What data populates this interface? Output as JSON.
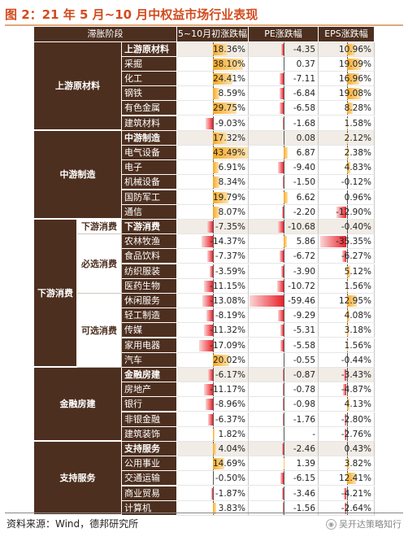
{
  "title": "图 2：21 年 5 月~10 月中权益市场行业表现",
  "headers": [
    "滞胀阶段",
    "5~10月初涨跌幅",
    "PE涨跌幅",
    "EPS涨跌幅"
  ],
  "footer": "资料来源：Wind，德邦研究所",
  "watermark": "吴开达策略知行",
  "groups": [
    {
      "label": "上游原材料",
      "rows": [
        {
          "name": "上游原材料",
          "summary": true,
          "v1": "18.36%",
          "v2": "-4.35",
          "v3": "10.96%"
        },
        {
          "name": "采掘",
          "v1": "38.10%",
          "v2": "0.37",
          "v3": "19.09%"
        },
        {
          "name": "化工",
          "v1": "24.41%",
          "v2": "-7.11",
          "v3": "16.96%"
        },
        {
          "name": "钢铁",
          "v1": "8.59%",
          "v2": "-6.84",
          "v3": "19.08%"
        },
        {
          "name": "有色金属",
          "v1": "29.75%",
          "v2": "-6.58",
          "v3": "8.28%"
        },
        {
          "name": "建筑材料",
          "v1": "-9.03%",
          "v2": "-1.68",
          "v3": "1.58%"
        }
      ]
    },
    {
      "label": "中游制造",
      "rows": [
        {
          "name": "中游制造",
          "summary": true,
          "v1": "17.32%",
          "v2": "0.08",
          "v3": "2.12%"
        },
        {
          "name": "电气设备",
          "v1": "43.49%",
          "v2": "6.87",
          "v3": "2.38%"
        },
        {
          "name": "电子",
          "v1": "6.91%",
          "v2": "-9.40",
          "v3": "4.83%"
        },
        {
          "name": "机械设备",
          "v1": "8.34%",
          "v2": "-1.50",
          "v3": "-0.12%"
        },
        {
          "name": "国防军工",
          "v1": "19.79%",
          "v2": "6.62",
          "v3": "0.96%"
        },
        {
          "name": "通信",
          "v1": "8.07%",
          "v2": "-2.20",
          "v3": "-12.90%"
        }
      ]
    },
    {
      "label": "下游消费",
      "subgroups": [
        {
          "label": "下游消费",
          "rows": [
            {
              "name": "下游消费",
              "summary": true,
              "v1": "-7.35%",
              "v2": "-10.68",
              "v3": "-0.40%"
            }
          ]
        },
        {
          "label": "必选消费",
          "rows": [
            {
              "name": "农林牧渔",
              "v1": "-14.37%",
              "v2": "5.86",
              "v3": "-35.35%"
            },
            {
              "name": "食品饮料",
              "v1": "-7.37%",
              "v2": "-6.72",
              "v3": "-6.27%"
            },
            {
              "name": "纺织服装",
              "v1": "-3.59%",
              "v2": "-3.90",
              "v3": "5.12%"
            },
            {
              "name": "医药生物",
              "v1": "-11.15%",
              "v2": "-10.72",
              "v3": "1.56%"
            }
          ]
        },
        {
          "label": "可选消费",
          "rows": [
            {
              "name": "休闲服务",
              "v1": "-13.08%",
              "v2": "-59.46",
              "v3": "12.95%"
            },
            {
              "name": "轻工制造",
              "v1": "-8.19%",
              "v2": "-9.29",
              "v3": "4.08%"
            },
            {
              "name": "传媒",
              "v1": "-11.32%",
              "v2": "-5.31",
              "v3": "3.18%"
            },
            {
              "name": "家用电器",
              "v1": "-17.09%",
              "v2": "-5.58",
              "v3": "1.56%"
            },
            {
              "name": "汽车",
              "v1": "20.02%",
              "v2": "-0.55",
              "v3": "-0.44%"
            }
          ]
        }
      ]
    },
    {
      "label": "金融房建",
      "rows": [
        {
          "name": "金融房建",
          "summary": true,
          "v1": "-6.17%",
          "v2": "-0.87",
          "v3": "-3.43%"
        },
        {
          "name": "房地产",
          "v1": "-11.17%",
          "v2": "-0.78",
          "v3": "-4.87%"
        },
        {
          "name": "银行",
          "v1": "-8.96%",
          "v2": "-0.98",
          "v3": "4.13%"
        },
        {
          "name": "非银金融",
          "v1": "-6.37%",
          "v2": "-1.76",
          "v3": "-2.80%"
        },
        {
          "name": "建筑装饰",
          "v1": "1.82%",
          "v2": "-",
          "v3": "-2.76%"
        }
      ]
    },
    {
      "label": "支持服务",
      "rows": [
        {
          "name": "支持服务",
          "summary": true,
          "v1": "4.04%",
          "v2": "-2.46",
          "v3": "0.43%"
        },
        {
          "name": "公用事业",
          "v1": "14.69%",
          "v2": "1.39",
          "v3": "3.82%"
        },
        {
          "name": "交通运输",
          "v1": "-0.50%",
          "v2": "-6.15",
          "v3": "12.41%"
        },
        {
          "name": "商业贸易",
          "v1": "-1.87%",
          "v2": "-3.46",
          "v3": "-4.21%"
        },
        {
          "name": "计算机",
          "v1": "3.83%",
          "v2": "-1.56",
          "v3": "-2.64%"
        }
      ]
    }
  ]
}
